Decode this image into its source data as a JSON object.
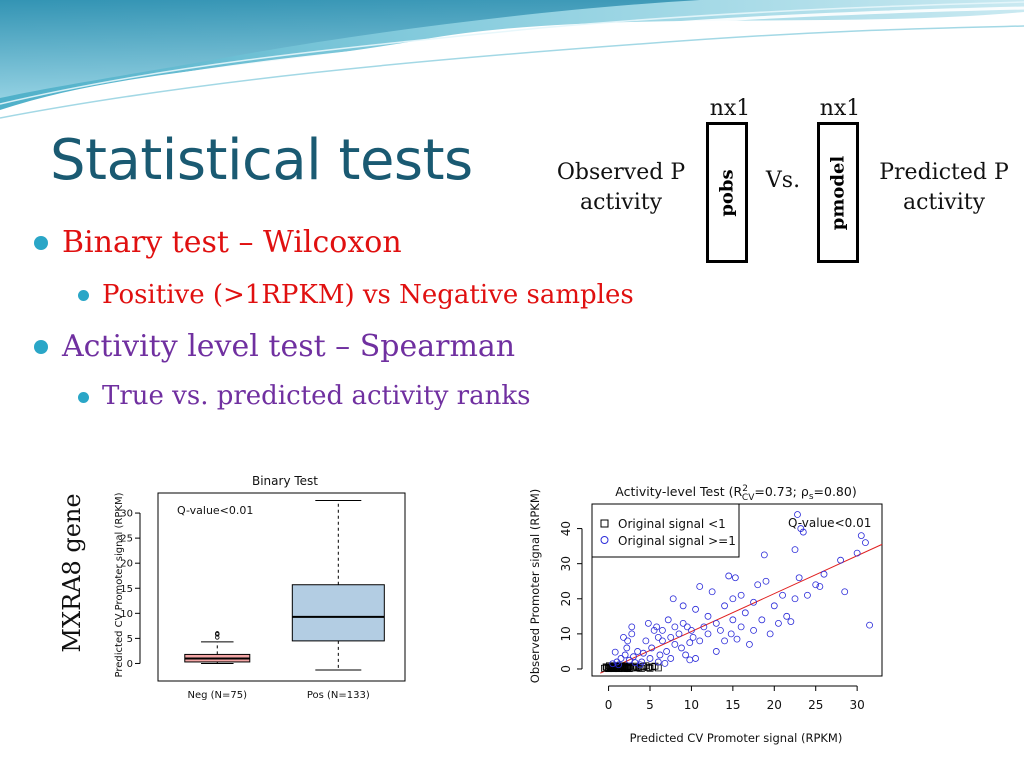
{
  "slide": {
    "title": "Statistical tests",
    "bullets": [
      {
        "text": "Binary test – Wilcoxon",
        "color": "#e01010"
      },
      {
        "text": "Positive (>1RPKM) vs Negative samples",
        "color": "#e01010"
      },
      {
        "text": "Activity level test – Spearman",
        "color": "#7030a0"
      },
      {
        "text": "True vs. predicted activity ranks",
        "color": "#7030a0"
      }
    ]
  },
  "diagram": {
    "observed_label_line1": "Observed P",
    "observed_label_line2": "activity",
    "predicted_label_line1": "Predicted P",
    "predicted_label_line2": "activity",
    "versus": "Vs.",
    "left_vector": {
      "dim": "nx1",
      "label": "pobs"
    },
    "right_vector": {
      "dim": "nx1",
      "label": "pmodel"
    }
  },
  "side_label": "MXRA8 gene",
  "colors": {
    "title": "#1a5a72",
    "accent": "#2aa6c7",
    "neg_box": "#f4a6a6",
    "pos_box": "#b3cde3",
    "scatter_point": "#2b2bd9",
    "fit_line": "#e02020"
  },
  "chart_data": [
    {
      "type": "boxplot",
      "title": "Binary Test",
      "annotation": "Q-value<0.01",
      "ylabel": "Predicted CV Promoter signal (RPKM)",
      "ylim": [
        -3.5,
        34
      ],
      "yticks": [
        0,
        5,
        10,
        15,
        20,
        25,
        30
      ],
      "grid": false,
      "categories": [
        "Neg (N=75)",
        "Pos (N=133)"
      ],
      "boxes": [
        {
          "name": "Neg (N=75)",
          "min": 0,
          "q1": 0.3,
          "median": 1.0,
          "q3": 1.8,
          "max": 4.3,
          "outliers": [
            5.2,
            5.8,
            6.0
          ],
          "color": "#f4a6a6"
        },
        {
          "name": "Pos (N=133)",
          "min": -1.3,
          "q1": 4.5,
          "median": 9.3,
          "q3": 15.7,
          "max": 32.5,
          "outliers": [],
          "color": "#b3cde3"
        }
      ]
    },
    {
      "type": "scatter",
      "title": "Activity-level Test (R²CV=0.73; ρs=0.80)",
      "title_parts": {
        "prefix": "Activity-level Test (R",
        "sup": "2",
        "sub": "CV",
        "mid": "=0.73; ",
        "rho": "ρ",
        "rho_sub": "s",
        "suffix": "=0.80)"
      },
      "annotation": "Q-value<0.01",
      "xlabel": "Predicted CV Promoter signal (RPKM)",
      "ylabel": "Observed Promoter signal (RPKM)",
      "xlim": [
        -2,
        33
      ],
      "ylim": [
        -2,
        47
      ],
      "xticks": [
        0,
        5,
        10,
        15,
        20,
        25,
        30
      ],
      "yticks": [
        0,
        10,
        20,
        30,
        40
      ],
      "grid": false,
      "legend_position": "top-left",
      "fit_line": {
        "x0": -1,
        "y0": -1.2,
        "x1": 33,
        "y1": 35.5
      },
      "series": [
        {
          "name": "Original signal <1",
          "marker": "square",
          "points": [
            [
              -0.5,
              0.2
            ],
            [
              -0.2,
              0.4
            ],
            [
              0,
              0.1
            ],
            [
              0.2,
              0.6
            ],
            [
              0.4,
              0.3
            ],
            [
              0.6,
              0.8
            ],
            [
              0.8,
              0.2
            ],
            [
              1.0,
              0.5
            ],
            [
              1.2,
              0.1
            ],
            [
              1.4,
              0.7
            ],
            [
              1.6,
              0.3
            ],
            [
              1.8,
              0.9
            ],
            [
              2.0,
              0.4
            ],
            [
              2.2,
              0.2
            ],
            [
              2.4,
              0.6
            ],
            [
              2.6,
              0.8
            ],
            [
              3.0,
              0.3
            ],
            [
              3.4,
              0.5
            ],
            [
              3.8,
              0.2
            ],
            [
              4.2,
              0.7
            ],
            [
              4.8,
              0.4
            ],
            [
              5.3,
              0.6
            ],
            [
              6.0,
              0.3
            ],
            [
              0.1,
              0.9
            ],
            [
              0.3,
              0.2
            ],
            [
              0.5,
              0.5
            ],
            [
              0.7,
              0.9
            ],
            [
              0.9,
              0.4
            ],
            [
              1.1,
              0.8
            ],
            [
              1.3,
              0.2
            ],
            [
              1.5,
              0.6
            ],
            [
              1.7,
              0.4
            ],
            [
              1.9,
              0.1
            ],
            [
              2.1,
              0.7
            ],
            [
              2.3,
              0.5
            ],
            [
              2.7,
              0.3
            ],
            [
              3.2,
              0.8
            ],
            [
              3.6,
              0.4
            ],
            [
              4.0,
              0.2
            ],
            [
              4.5,
              0.9
            ],
            [
              5.0,
              0.2
            ],
            [
              5.6,
              0.8
            ],
            [
              -0.3,
              0.6
            ],
            [
              0.0,
              0.5
            ],
            [
              0.6,
              0.1
            ],
            [
              1.0,
              0.9
            ],
            [
              1.6,
              0.7
            ],
            [
              2.5,
              0.1
            ]
          ]
        },
        {
          "name": "Original signal >=1",
          "marker": "circle",
          "points": [
            [
              0.5,
              1.5
            ],
            [
              1.0,
              2.0
            ],
            [
              1.5,
              3.0
            ],
            [
              1.2,
              1.2
            ],
            [
              2.0,
              4.0
            ],
            [
              2.5,
              2.5
            ],
            [
              2.2,
              6.0
            ],
            [
              2.8,
              10.0
            ],
            [
              2.8,
              12.0
            ],
            [
              3.0,
              3.5
            ],
            [
              3.5,
              5.0
            ],
            [
              3.2,
              1.8
            ],
            [
              4.0,
              2.0
            ],
            [
              4.2,
              4.5
            ],
            [
              4.5,
              8.0
            ],
            [
              5.0,
              3.0
            ],
            [
              5.2,
              6.0
            ],
            [
              5.5,
              11.0
            ],
            [
              5.8,
              12.0
            ],
            [
              6.0,
              2.0
            ],
            [
              6.2,
              4.0
            ],
            [
              6.5,
              8.0
            ],
            [
              6.5,
              11.0
            ],
            [
              7.0,
              5.0
            ],
            [
              7.5,
              9.0
            ],
            [
              7.8,
              20.0
            ],
            [
              7.5,
              3.0
            ],
            [
              8.0,
              12.0
            ],
            [
              8.0,
              7.0
            ],
            [
              8.5,
              10.0
            ],
            [
              8.8,
              6.0
            ],
            [
              9.0,
              18.0
            ],
            [
              9.0,
              13.0
            ],
            [
              9.3,
              4.0
            ],
            [
              9.5,
              12.0
            ],
            [
              9.8,
              7.5
            ],
            [
              10.0,
              11.0
            ],
            [
              10.2,
              9.0
            ],
            [
              10.5,
              17.0
            ],
            [
              10.5,
              3.0
            ],
            [
              11.0,
              8.0
            ],
            [
              11.0,
              23.5
            ],
            [
              11.5,
              12.0
            ],
            [
              12.0,
              10.0
            ],
            [
              12.0,
              15.0
            ],
            [
              12.5,
              22.0
            ],
            [
              13.0,
              5.0
            ],
            [
              13.0,
              13.0
            ],
            [
              13.5,
              11.0
            ],
            [
              14.0,
              18.0
            ],
            [
              14.0,
              8.0
            ],
            [
              14.5,
              26.5
            ],
            [
              14.8,
              10.0
            ],
            [
              15.0,
              20.0
            ],
            [
              15.0,
              14.0
            ],
            [
              15.3,
              26.0
            ],
            [
              15.5,
              8.5
            ],
            [
              16.0,
              21.0
            ],
            [
              16.0,
              12.0
            ],
            [
              16.5,
              16.0
            ],
            [
              17.0,
              7.0
            ],
            [
              17.5,
              19.0
            ],
            [
              17.5,
              11.0
            ],
            [
              18.0,
              24.0
            ],
            [
              18.5,
              14.0
            ],
            [
              18.8,
              32.5
            ],
            [
              19.0,
              25.0
            ],
            [
              19.5,
              10.0
            ],
            [
              20.0,
              18.0
            ],
            [
              20.5,
              13.0
            ],
            [
              21.0,
              21.0
            ],
            [
              21.5,
              15.0
            ],
            [
              22.0,
              13.5
            ],
            [
              22.5,
              20.0
            ],
            [
              22.5,
              34.0
            ],
            [
              22.8,
              44.0
            ],
            [
              23.0,
              26.0
            ],
            [
              23.2,
              40.0
            ],
            [
              23.5,
              39.0
            ],
            [
              24.0,
              21.0
            ],
            [
              25.0,
              24.0
            ],
            [
              25.5,
              23.5
            ],
            [
              26.0,
              27.0
            ],
            [
              28.0,
              31.0
            ],
            [
              28.5,
              22.0
            ],
            [
              30.0,
              33.0
            ],
            [
              30.5,
              38.0
            ],
            [
              31.0,
              36.0
            ],
            [
              31.5,
              12.5
            ],
            [
              3.8,
              1.2
            ],
            [
              6.8,
              1.6
            ],
            [
              9.8,
              2.6
            ],
            [
              0.8,
              4.8
            ],
            [
              1.8,
              9.0
            ],
            [
              2.3,
              8.0
            ],
            [
              4.8,
              13.0
            ],
            [
              6.0,
              9.0
            ],
            [
              7.2,
              14.0
            ]
          ]
        }
      ]
    }
  ]
}
